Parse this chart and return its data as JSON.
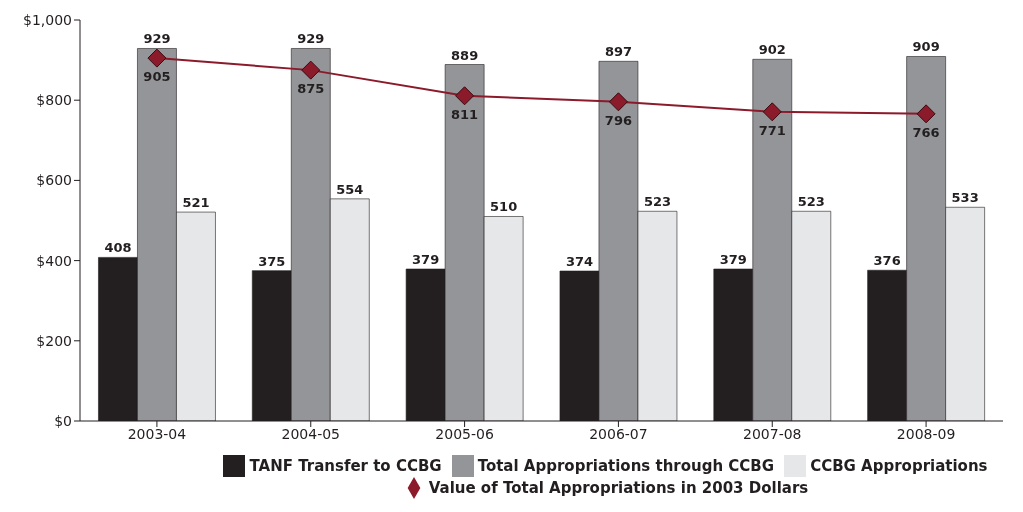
{
  "chart_data": {
    "type": "bar",
    "categories": [
      "2003-04",
      "2004-05",
      "2005-06",
      "2006-07",
      "2007-08",
      "2008-09"
    ],
    "series": [
      {
        "name": "TANF Transfer to CCBG",
        "color": "#231f20",
        "values": [
          408,
          375,
          379,
          374,
          379,
          376
        ]
      },
      {
        "name": "Total Appropriations through CCBG",
        "color": "#939598",
        "values": [
          929,
          929,
          889,
          897,
          902,
          909
        ]
      },
      {
        "name": "CCBG Appropriations",
        "color": "#e6e7e8",
        "values": [
          521,
          554,
          510,
          523,
          523,
          533
        ]
      },
      {
        "name": "Value of Total Appropriations in 2003 Dollars",
        "type": "line",
        "color": "#8b1a2b",
        "values": [
          905,
          875,
          811,
          796,
          771,
          766
        ],
        "marker": "diamond"
      }
    ],
    "ylim": [
      0,
      1000
    ],
    "yticks": [
      {
        "value": 0,
        "label": "$0"
      },
      {
        "value": 200,
        "label": "$200"
      },
      {
        "value": 400,
        "label": "$400"
      },
      {
        "value": 600,
        "label": "$600"
      },
      {
        "value": 800,
        "label": "$800"
      },
      {
        "value": 1000,
        "label": "$1,000"
      }
    ],
    "data_labels": true,
    "legend": "bottom",
    "grid": false
  }
}
